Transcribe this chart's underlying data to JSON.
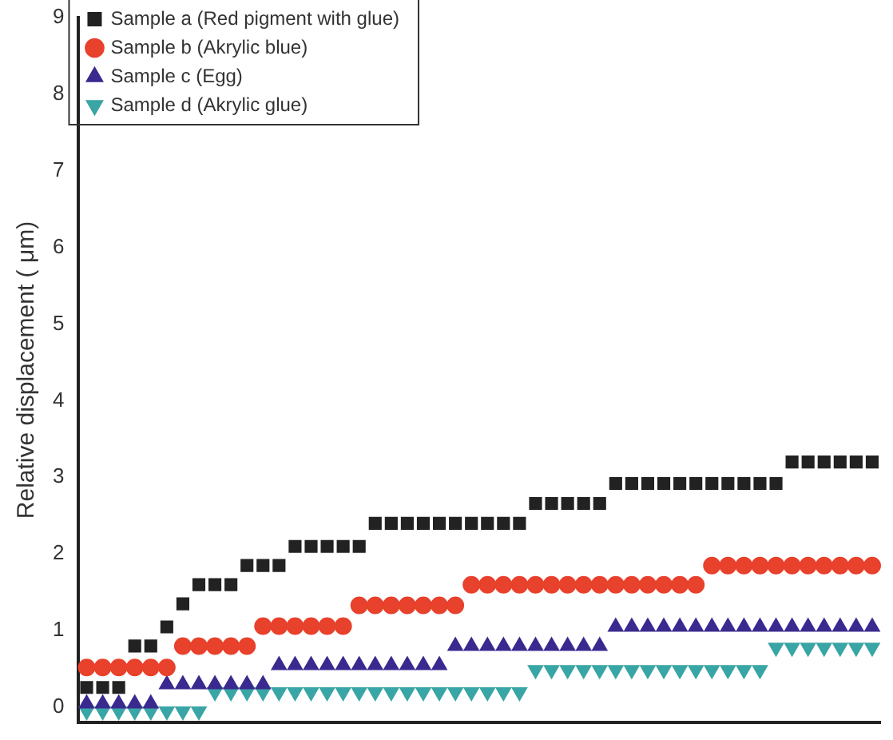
{
  "chart_data": {
    "type": "scatter",
    "ylabel": "Relative displacement ( μm)",
    "categories": [
      null,
      null,
      null,
      null,
      null,
      null,
      null,
      null,
      null,
      null,
      null,
      null,
      null,
      null,
      null,
      null,
      null,
      null,
      null,
      null,
      null,
      null,
      null,
      null,
      null,
      null,
      null,
      null,
      null,
      null,
      null,
      null,
      null,
      null,
      null,
      null,
      null,
      null,
      null,
      null,
      null,
      null,
      null,
      null,
      null,
      null,
      null,
      null,
      null,
      null
    ],
    "ylim": [
      -0.2,
      9
    ],
    "yticks": [
      0,
      1,
      2,
      3,
      4,
      5,
      6,
      7,
      8,
      9
    ],
    "tick_labels": "y",
    "grid": false,
    "legend": "top left",
    "series": [
      {
        "name": "Sample a (Red pigment with glue)",
        "color": "#222222",
        "marker": "square",
        "values": [
          0.26,
          0.26,
          0.26,
          0.8,
          0.8,
          1.05,
          1.35,
          1.6,
          1.6,
          1.6,
          1.85,
          1.85,
          1.85,
          2.1,
          2.1,
          2.1,
          2.1,
          2.1,
          2.4,
          2.4,
          2.4,
          2.4,
          2.4,
          2.4,
          2.4,
          2.4,
          2.4,
          2.4,
          2.66,
          2.66,
          2.66,
          2.66,
          2.66,
          2.92,
          2.92,
          2.92,
          2.92,
          2.92,
          2.92,
          2.92,
          2.92,
          2.92,
          2.92,
          2.92,
          3.2,
          3.2,
          3.2,
          3.2,
          3.2,
          3.2
        ]
      },
      {
        "name": "Sample b (Akrylic blue)",
        "color": "#e8412c",
        "marker": "circle",
        "values": [
          0.52,
          0.52,
          0.52,
          0.52,
          0.52,
          0.52,
          0.8,
          0.8,
          0.8,
          0.8,
          0.8,
          1.06,
          1.06,
          1.06,
          1.06,
          1.06,
          1.06,
          1.33,
          1.33,
          1.33,
          1.33,
          1.33,
          1.33,
          1.33,
          1.6,
          1.6,
          1.6,
          1.6,
          1.6,
          1.6,
          1.6,
          1.6,
          1.6,
          1.6,
          1.6,
          1.6,
          1.6,
          1.6,
          1.6,
          1.85,
          1.85,
          1.85,
          1.85,
          1.85,
          1.85,
          1.85,
          1.85,
          1.85,
          1.85,
          1.85
        ]
      },
      {
        "name": "Sample c (Egg)",
        "color": "#3a2a8f",
        "marker": "triangle",
        "values": [
          0.05,
          0.05,
          0.05,
          0.05,
          0.05,
          0.3,
          0.3,
          0.3,
          0.3,
          0.3,
          0.3,
          0.3,
          0.55,
          0.55,
          0.55,
          0.55,
          0.55,
          0.55,
          0.55,
          0.55,
          0.55,
          0.55,
          0.55,
          0.8,
          0.8,
          0.8,
          0.8,
          0.8,
          0.8,
          0.8,
          0.8,
          0.8,
          0.8,
          1.05,
          1.05,
          1.05,
          1.05,
          1.05,
          1.05,
          1.05,
          1.05,
          1.05,
          1.05,
          1.05,
          1.05,
          1.05,
          1.05,
          1.05,
          1.05,
          1.05
        ]
      },
      {
        "name": "Sample d (Akrylic glue)",
        "color": "#3aa5a5",
        "marker": "triangle-down",
        "values": [
          -0.05,
          -0.05,
          -0.05,
          -0.05,
          -0.05,
          -0.05,
          -0.05,
          -0.05,
          0.2,
          0.2,
          0.2,
          0.2,
          0.2,
          0.2,
          0.2,
          0.2,
          0.2,
          0.2,
          0.2,
          0.2,
          0.2,
          0.2,
          0.2,
          0.2,
          0.2,
          0.2,
          0.2,
          0.2,
          0.49,
          0.49,
          0.49,
          0.49,
          0.49,
          0.49,
          0.49,
          0.49,
          0.49,
          0.49,
          0.49,
          0.49,
          0.49,
          0.49,
          0.49,
          0.78,
          0.78,
          0.78,
          0.78,
          0.78,
          0.78,
          0.78
        ]
      }
    ]
  }
}
